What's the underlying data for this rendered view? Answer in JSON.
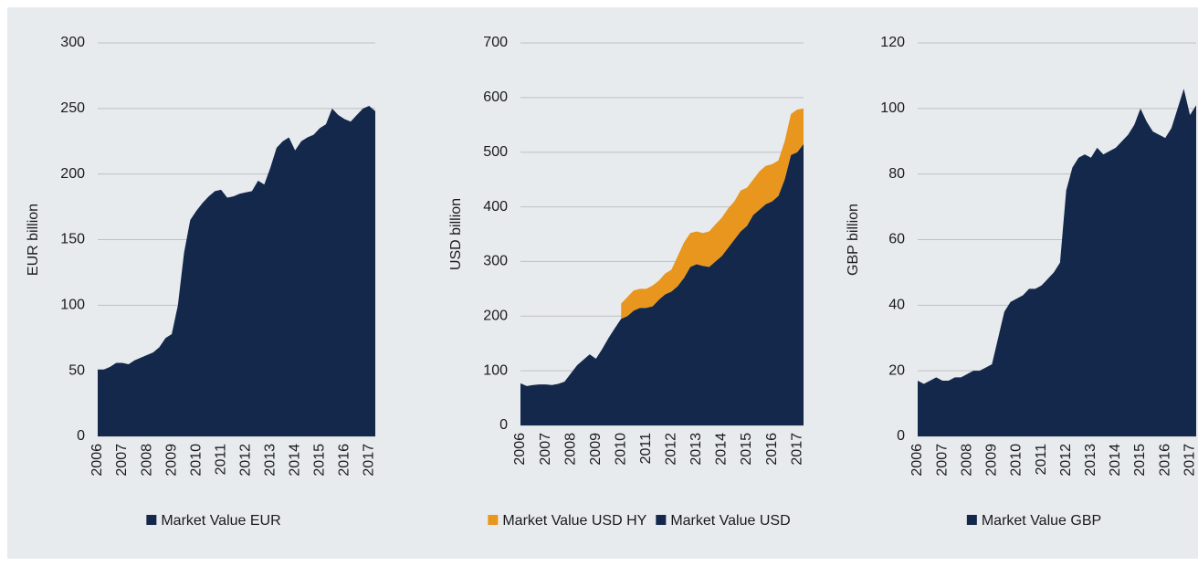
{
  "chart_data": [
    {
      "type": "area",
      "ylabel": "EUR billion",
      "x": [
        2006,
        2006.25,
        2006.5,
        2006.75,
        2007,
        2007.25,
        2007.5,
        2007.75,
        2008,
        2008.25,
        2008.5,
        2008.75,
        2009,
        2009.25,
        2009.5,
        2009.75,
        2010,
        2010.25,
        2010.5,
        2010.75,
        2011,
        2011.25,
        2011.5,
        2011.75,
        2012,
        2012.25,
        2012.5,
        2012.75,
        2013,
        2013.25,
        2013.5,
        2013.75,
        2014,
        2014.25,
        2014.5,
        2014.75,
        2015,
        2015.25,
        2015.5,
        2015.75,
        2016,
        2016.25,
        2016.5,
        2016.75,
        2017,
        2017.25
      ],
      "series": [
        {
          "name": "Market Value EUR",
          "color": "#13284a",
          "values": [
            51,
            51,
            53,
            56,
            56,
            55,
            58,
            60,
            62,
            64,
            68,
            75,
            78,
            100,
            140,
            165,
            172,
            178,
            183,
            187,
            188,
            182,
            183,
            185,
            186,
            187,
            195,
            192,
            205,
            220,
            225,
            228,
            218,
            225,
            228,
            230,
            235,
            238,
            250,
            245,
            242,
            240,
            245,
            250,
            252,
            248
          ]
        }
      ],
      "xlim": [
        2006,
        2017.25
      ],
      "xticks": [
        2006,
        2007,
        2008,
        2009,
        2010,
        2011,
        2012,
        2013,
        2014,
        2015,
        2016,
        2017
      ],
      "ylim": [
        0,
        300
      ],
      "yticks": [
        0,
        50,
        100,
        150,
        200,
        250,
        300
      ],
      "grid": true,
      "legend": "bottom"
    },
    {
      "type": "stacked_area",
      "ylabel": "USD billion",
      "x": [
        2006,
        2006.25,
        2006.5,
        2006.75,
        2007,
        2007.25,
        2007.5,
        2007.75,
        2008,
        2008.25,
        2008.5,
        2008.75,
        2009,
        2009.25,
        2009.5,
        2009.75,
        2010,
        2010.25,
        2010.5,
        2010.75,
        2011,
        2011.25,
        2011.5,
        2011.75,
        2012,
        2012.25,
        2012.5,
        2012.75,
        2013,
        2013.25,
        2013.5,
        2013.75,
        2014,
        2014.25,
        2014.5,
        2014.75,
        2015,
        2015.25,
        2015.5,
        2015.75,
        2016,
        2016.25,
        2016.5,
        2016.75,
        2017,
        2017.25
      ],
      "series": [
        {
          "name": "Market Value USD HY",
          "color": "#e8961e",
          "values": [
            null,
            null,
            null,
            null,
            null,
            null,
            null,
            null,
            null,
            null,
            null,
            null,
            null,
            null,
            null,
            null,
            28,
            35,
            37,
            35,
            35,
            38,
            35,
            38,
            40,
            55,
            65,
            62,
            60,
            60,
            65,
            68,
            70,
            72,
            70,
            75,
            70,
            65,
            70,
            70,
            68,
            65,
            70,
            75,
            78,
            65
          ]
        },
        {
          "name": "Market Value USD",
          "color": "#13284a",
          "values": [
            77,
            72,
            74,
            75,
            75,
            74,
            76,
            80,
            95,
            110,
            120,
            130,
            122,
            140,
            160,
            178,
            195,
            200,
            210,
            215,
            215,
            218,
            230,
            240,
            245,
            255,
            270,
            290,
            295,
            292,
            290,
            300,
            310,
            325,
            340,
            355,
            365,
            385,
            395,
            405,
            410,
            420,
            450,
            495,
            500,
            515
          ]
        }
      ],
      "xlim": [
        2006,
        2017.25
      ],
      "xticks": [
        2006,
        2007,
        2008,
        2009,
        2010,
        2011,
        2012,
        2013,
        2014,
        2015,
        2016,
        2017
      ],
      "ylim": [
        0,
        700
      ],
      "yticks": [
        0,
        100,
        200,
        300,
        400,
        500,
        600,
        700
      ],
      "grid": true,
      "legend": "bottom"
    },
    {
      "type": "area",
      "ylabel": "GBP billion",
      "x": [
        2006,
        2006.25,
        2006.5,
        2006.75,
        2007,
        2007.25,
        2007.5,
        2007.75,
        2008,
        2008.25,
        2008.5,
        2008.75,
        2009,
        2009.25,
        2009.5,
        2009.75,
        2010,
        2010.25,
        2010.5,
        2010.75,
        2011,
        2011.25,
        2011.5,
        2011.75,
        2012,
        2012.25,
        2012.5,
        2012.75,
        2013,
        2013.25,
        2013.5,
        2013.75,
        2014,
        2014.25,
        2014.5,
        2014.75,
        2015,
        2015.25,
        2015.5,
        2015.75,
        2016,
        2016.25,
        2016.5,
        2016.75,
        2017,
        2017.25
      ],
      "series": [
        {
          "name": "Market Value GBP",
          "color": "#13284a",
          "values": [
            17,
            16,
            17,
            18,
            17,
            17,
            18,
            18,
            19,
            20,
            20,
            21,
            22,
            30,
            38,
            41,
            42,
            43,
            45,
            45,
            46,
            48,
            50,
            53,
            75,
            82,
            85,
            86,
            85,
            88,
            86,
            87,
            88,
            90,
            92,
            95,
            100,
            96,
            93,
            92,
            91,
            94,
            100,
            106,
            98,
            101
          ]
        }
      ],
      "xlim": [
        2006,
        2017.25
      ],
      "xticks": [
        2006,
        2007,
        2008,
        2009,
        2010,
        2011,
        2012,
        2013,
        2014,
        2015,
        2016,
        2017
      ],
      "ylim": [
        0,
        120
      ],
      "yticks": [
        0,
        20,
        40,
        60,
        80,
        100,
        120
      ],
      "grid": true,
      "legend": "bottom"
    }
  ]
}
